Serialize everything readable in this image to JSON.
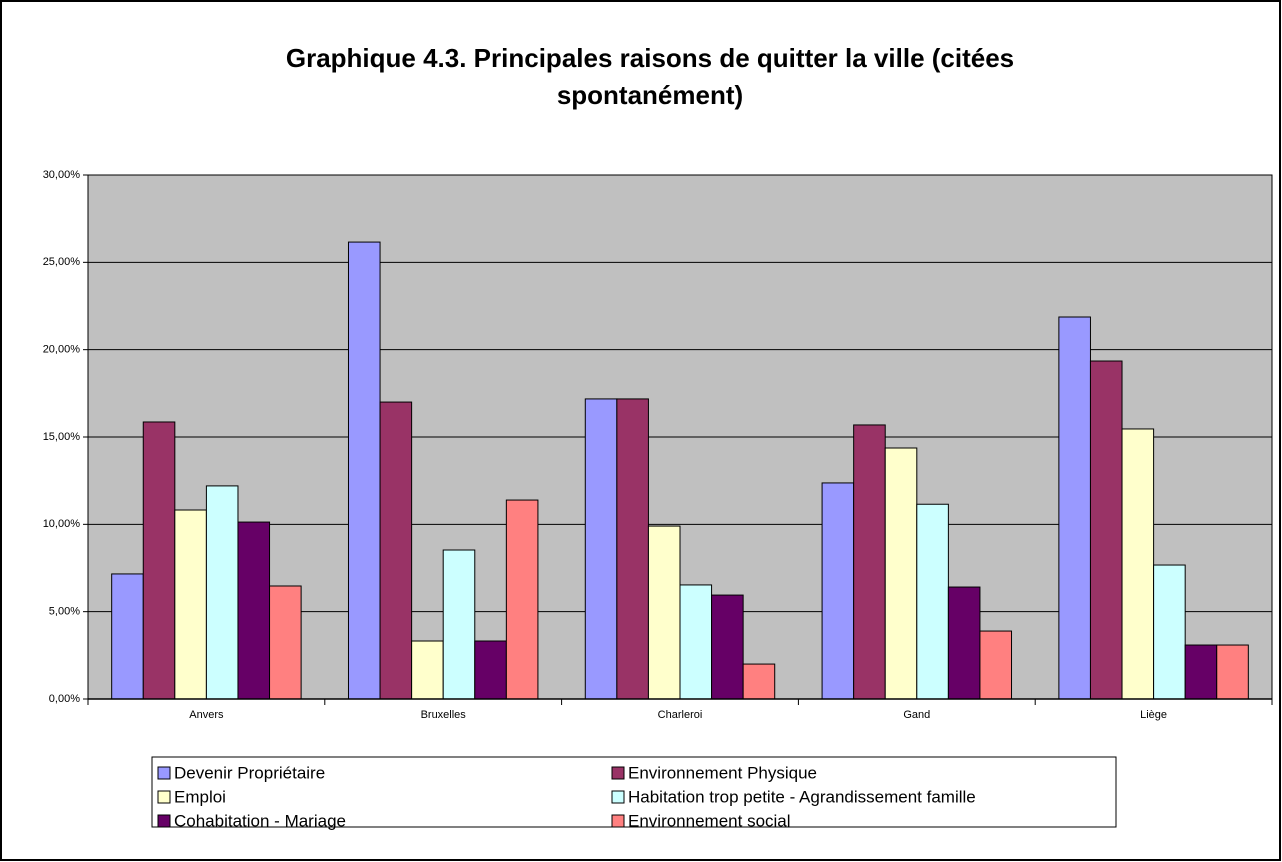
{
  "chart_data": {
    "type": "bar",
    "title": "Graphique 4.3. Principales raisons de quitter la ville (citées spontanément)",
    "categories": [
      "Anvers",
      "Bruxelles",
      "Charleroi",
      "Gand",
      "Liège"
    ],
    "series": [
      {
        "name": "Devenir Propriétaire",
        "color": "#9999ff",
        "values": [
          7.16,
          26.16,
          17.18,
          12.37,
          21.87
        ]
      },
      {
        "name": "Environnement Physique",
        "color": "#993366",
        "values": [
          15.86,
          17.0,
          17.18,
          15.69,
          19.35
        ]
      },
      {
        "name": "Emploi",
        "color": "#ffffcc",
        "values": [
          10.82,
          3.32,
          9.9,
          14.37,
          15.46
        ]
      },
      {
        "name": "Habitation trop petite - Agrandissement famille",
        "color": "#ccffff",
        "values": [
          12.2,
          8.53,
          6.53,
          11.15,
          7.67
        ]
      },
      {
        "name": "Cohabitation - Mariage",
        "color": "#660066",
        "values": [
          10.13,
          3.32,
          5.95,
          6.41,
          3.09
        ]
      },
      {
        "name": "Environnement social",
        "color": "#ff8080",
        "values": [
          6.47,
          11.39,
          2.0,
          3.89,
          3.09
        ]
      }
    ],
    "ylim": [
      0,
      30
    ],
    "yticks": [
      {
        "value": 0,
        "label": "0,00%"
      },
      {
        "value": 5,
        "label": "5,00%"
      },
      {
        "value": 10,
        "label": "10,00%"
      },
      {
        "value": 15,
        "label": "15,00%"
      },
      {
        "value": 20,
        "label": "20,00%"
      },
      {
        "value": 25,
        "label": "25,00%"
      },
      {
        "value": 30,
        "label": "30,00%"
      }
    ],
    "grid": true,
    "plot_background": "#c0c0c0",
    "legend": "bottom"
  }
}
